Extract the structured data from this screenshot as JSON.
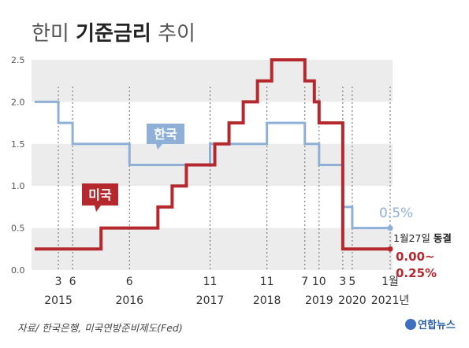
{
  "title": {
    "prefix": "한미",
    "main": "기준금리",
    "suffix": "추이"
  },
  "source": "자료/ 한국은행, 미국연방준비제도(Fed)",
  "logo": "연합뉴스",
  "colors": {
    "korea": "#8fb0d6",
    "us": "#b5282e",
    "band": "#ececec",
    "text": "#333333"
  },
  "chart_data": {
    "type": "line",
    "x_unit": "month",
    "ylim": [
      0,
      2.5
    ],
    "yticks": [
      "0.0",
      "0.5",
      "1.0",
      "1.5",
      "2.0",
      "2.5"
    ],
    "xticks": [
      {
        "month": "2015-03",
        "label": "3",
        "year": "2015"
      },
      {
        "month": "2015-06",
        "label": "6",
        "year": ""
      },
      {
        "month": "2016-06",
        "label": "6",
        "year": "2016"
      },
      {
        "month": "2017-11",
        "label": "11",
        "year": "2017"
      },
      {
        "month": "2018-11",
        "label": "11",
        "year": "2018"
      },
      {
        "month": "2019-07",
        "label": "7",
        "year": ""
      },
      {
        "month": "2019-10",
        "label": "10",
        "year": "2019"
      },
      {
        "month": "2020-03",
        "label": "3",
        "year": ""
      },
      {
        "month": "2020-05",
        "label": "5",
        "year": "2020"
      },
      {
        "month": "2021-01",
        "label": "1월",
        "year": "2021년"
      }
    ],
    "series": [
      {
        "name": "한국",
        "values": [
          {
            "date": "2014-10",
            "rate": 2.0
          },
          {
            "date": "2015-03",
            "rate": 1.75
          },
          {
            "date": "2015-06",
            "rate": 1.5
          },
          {
            "date": "2016-06",
            "rate": 1.25
          },
          {
            "date": "2017-11",
            "rate": 1.5
          },
          {
            "date": "2018-11",
            "rate": 1.75
          },
          {
            "date": "2019-07",
            "rate": 1.5
          },
          {
            "date": "2019-10",
            "rate": 1.25
          },
          {
            "date": "2020-03",
            "rate": 0.75
          },
          {
            "date": "2020-05",
            "rate": 0.5
          },
          {
            "date": "2021-01",
            "rate": 0.5
          }
        ],
        "end_label": "0.5%"
      },
      {
        "name": "미국",
        "values": [
          {
            "date": "2014-10",
            "rate": 0.25
          },
          {
            "date": "2015-12",
            "rate": 0.5
          },
          {
            "date": "2016-12",
            "rate": 0.75
          },
          {
            "date": "2017-03",
            "rate": 1.0
          },
          {
            "date": "2017-06",
            "rate": 1.25
          },
          {
            "date": "2017-12",
            "rate": 1.5
          },
          {
            "date": "2018-03",
            "rate": 1.75
          },
          {
            "date": "2018-06",
            "rate": 2.0
          },
          {
            "date": "2018-09",
            "rate": 2.25
          },
          {
            "date": "2018-12",
            "rate": 2.5
          },
          {
            "date": "2019-07",
            "rate": 2.25
          },
          {
            "date": "2019-09",
            "rate": 2.0
          },
          {
            "date": "2019-10",
            "rate": 1.75
          },
          {
            "date": "2020-03",
            "rate": 0.25
          },
          {
            "date": "2021-01",
            "rate": 0.25
          }
        ],
        "end_label_line1": "0.00~",
        "end_label_line2": "0.25%"
      }
    ],
    "annotation": {
      "date": "1월27일",
      "word": "동결"
    }
  }
}
